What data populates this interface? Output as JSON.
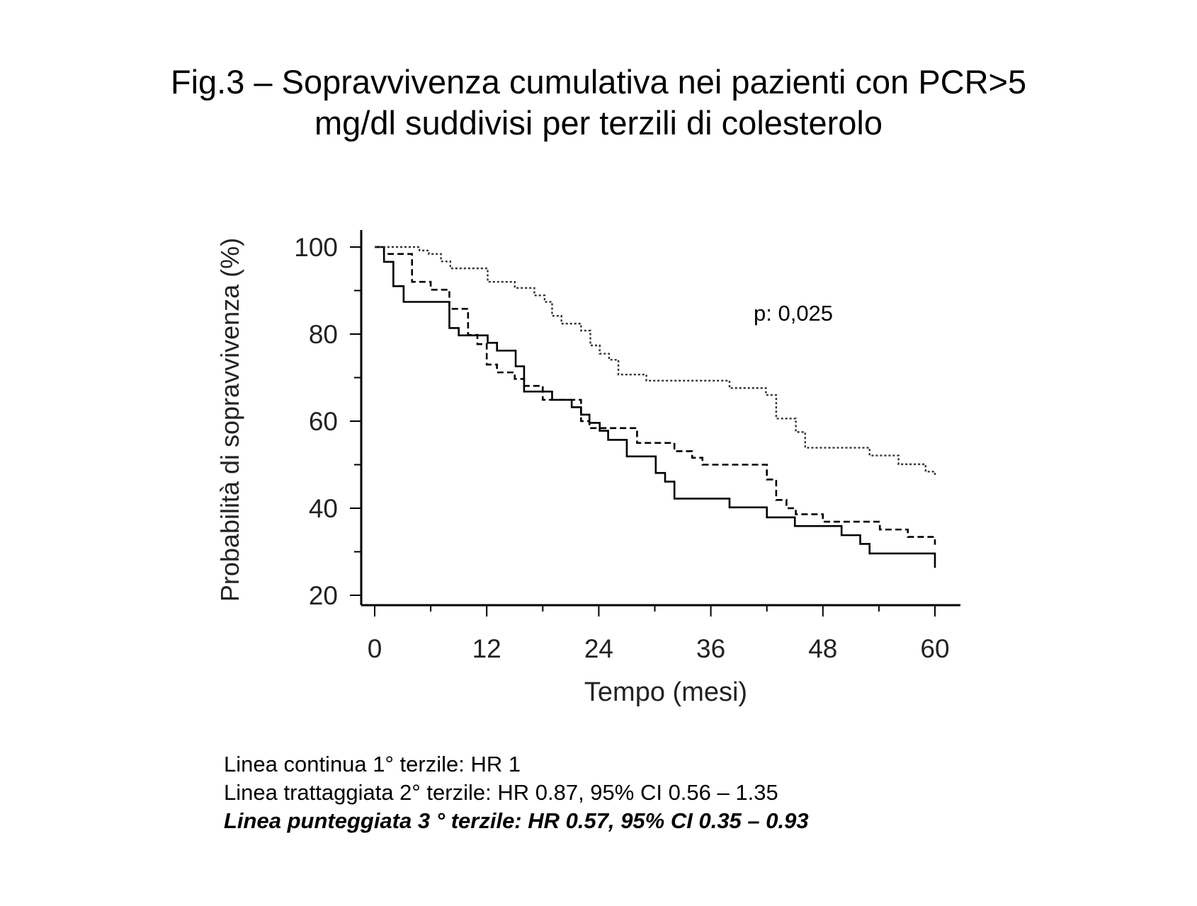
{
  "title_line1": "Fig.3 – Sopravvivenza cumulativa nei pazienti con PCR>5",
  "title_line2": "mg/dl suddivisi per terzili di colesterolo",
  "chart_data": {
    "type": "line",
    "subtype": "kaplan-meier step",
    "xlabel": "Tempo (mesi)",
    "ylabel": "Probabilità di sopravvivenza (%)",
    "xlim": [
      0,
      60
    ],
    "ylim": [
      20,
      100
    ],
    "xticks": [
      "0",
      "12",
      "24",
      "36",
      "48",
      "60"
    ],
    "yticks": [
      "100",
      "80",
      "60",
      "40",
      "20"
    ],
    "annotation": "p: 0,025",
    "grid": false,
    "series": [
      {
        "name": "1° terzile (continua)",
        "style": "solid",
        "x": [
          0,
          1,
          2,
          3.1,
          8,
          9,
          12.1,
          13.1,
          15.1,
          16,
          19,
          21.1,
          22.1,
          23,
          24.1,
          25,
          27,
          30.1,
          31.1,
          32.1,
          38,
          42,
          45,
          50,
          52,
          53,
          60,
          60
        ],
        "y": [
          100,
          96.6,
          91,
          87.4,
          81.4,
          79.7,
          78,
          76.2,
          72.6,
          66.8,
          64.9,
          63.2,
          61.5,
          59.6,
          57.8,
          55.7,
          51.9,
          48.1,
          46.1,
          42.2,
          40.2,
          37.9,
          35.9,
          33.8,
          31.8,
          29.6,
          29.6,
          26.3
        ]
      },
      {
        "name": "2° terzile (trattaggiata)",
        "style": "dashed",
        "x": [
          0,
          1,
          4,
          6,
          8,
          10,
          11,
          12,
          13.1,
          15,
          16,
          18,
          22.1,
          23,
          28.1,
          32.1,
          34,
          35.1,
          42,
          43,
          44.1,
          45.1,
          48,
          54.1,
          57.1,
          60,
          60
        ],
        "y": [
          100,
          98.4,
          92,
          90.2,
          85.8,
          79.8,
          77.7,
          73,
          71.2,
          69.7,
          68.1,
          64.9,
          60,
          58.4,
          55,
          53.1,
          51.6,
          50,
          46.6,
          41.9,
          40,
          38.6,
          36.9,
          35.1,
          33.4,
          33.4,
          31.6
        ]
      },
      {
        "name": "3° terzile (punteggiata)",
        "style": "dotted",
        "x": [
          0,
          4.8,
          5.8,
          7.1,
          8.1,
          12.1,
          15,
          17.1,
          18.2,
          19,
          20,
          22.1,
          23.1,
          24.1,
          25.1,
          26.1,
          29.1,
          38,
          41.9,
          43,
          45.1,
          46.1,
          53,
          56.1,
          59,
          60,
          60
        ],
        "y": [
          100,
          99.2,
          98.4,
          96.7,
          95.1,
          92,
          90.6,
          88.9,
          87.4,
          84.2,
          82.4,
          80.8,
          77.4,
          75.5,
          74.1,
          70.7,
          69.3,
          67.6,
          66,
          60.6,
          57.5,
          53.9,
          52.1,
          50.1,
          48.4,
          48.4,
          47.2
        ]
      }
    ]
  },
  "legend": {
    "line1": "Linea continua 1°   terzile: HR 1",
    "line2": "Linea trattaggiata 2°   terzile: HR 0.87, 95% CI 0.56 – 1.35",
    "line3": "Linea punteggiata 3 °   terzile: HR 0.57, 95% CI 0.35 – 0.93"
  }
}
